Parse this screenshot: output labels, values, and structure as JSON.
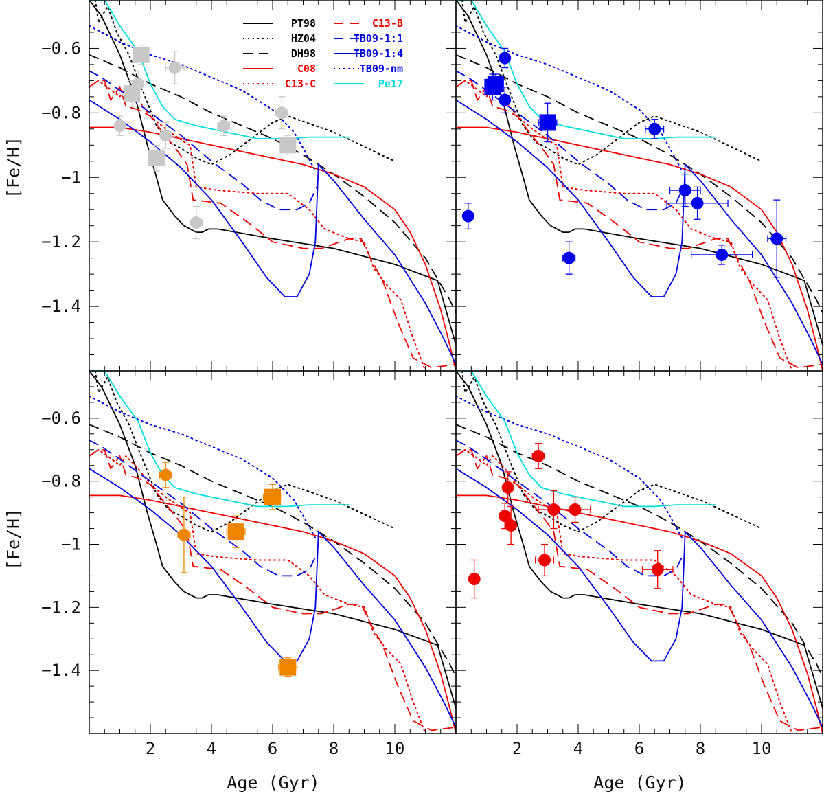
{
  "chart_data": {
    "type": "line",
    "title": "",
    "xlabel": "Age (Gyr)",
    "ylabel": "[Fe/H]",
    "xlim": [
      0,
      12
    ],
    "ylim": [
      -1.6,
      -0.45
    ],
    "xticks": [
      "2",
      "4",
      "6",
      "8",
      "10"
    ],
    "yticks": [
      "-0.6",
      "-0.8",
      "-1",
      "-1.2",
      "-1.4"
    ],
    "grid": false,
    "legend_position": "top",
    "legend": [
      {
        "name": "PT98",
        "color": "#000000",
        "style": "solid"
      },
      {
        "name": "HZ04",
        "color": "#000000",
        "style": "dotted"
      },
      {
        "name": "DH98",
        "color": "#000000",
        "style": "dashed"
      },
      {
        "name": "C08",
        "color": "#ee0000",
        "style": "solid"
      },
      {
        "name": "C13-C",
        "color": "#ee0000",
        "style": "dotted"
      },
      {
        "name": "C13-B",
        "color": "#ee0000",
        "style": "dashed"
      },
      {
        "name": "TB09-1:1",
        "color": "#0000dd",
        "style": "dashed"
      },
      {
        "name": "TB09-1:4",
        "color": "#0000dd",
        "style": "solid"
      },
      {
        "name": "TB09-nm",
        "color": "#0000dd",
        "style": "dotted"
      },
      {
        "name": "Pe17",
        "color": "#00dddd",
        "style": "solid"
      }
    ],
    "model_series": [
      {
        "name": "PT98",
        "color": "#000000",
        "style": "solid",
        "points": [
          [
            0,
            -0.45
          ],
          [
            0.4,
            -0.5
          ],
          [
            1.0,
            -0.62
          ],
          [
            1.5,
            -0.75
          ],
          [
            1.9,
            -0.9
          ],
          [
            2.2,
            -1.0
          ],
          [
            2.4,
            -1.07
          ],
          [
            2.8,
            -1.12
          ],
          [
            3.1,
            -1.15
          ],
          [
            3.5,
            -1.17
          ],
          [
            3.7,
            -1.17
          ],
          [
            3.9,
            -1.16
          ],
          [
            4.2,
            -1.16
          ],
          [
            6,
            -1.19
          ],
          [
            8,
            -1.22
          ],
          [
            10,
            -1.27
          ],
          [
            11.4,
            -1.32
          ],
          [
            11.7,
            -1.42
          ],
          [
            12,
            -1.52
          ]
        ]
      },
      {
        "name": "HZ04",
        "color": "#000000",
        "style": "dotted",
        "points": [
          [
            0.2,
            -0.45
          ],
          [
            0.3,
            -0.52
          ],
          [
            0.6,
            -0.47
          ],
          [
            0.9,
            -0.55
          ],
          [
            1.3,
            -0.62
          ],
          [
            1.7,
            -0.72
          ],
          [
            2.2,
            -0.84
          ],
          [
            2.6,
            -0.89
          ],
          [
            3.0,
            -0.91
          ],
          [
            3.5,
            -0.94
          ],
          [
            4.0,
            -0.96
          ],
          [
            4.6,
            -0.93
          ],
          [
            5.3,
            -0.88
          ],
          [
            6.0,
            -0.83
          ],
          [
            6.5,
            -0.81
          ],
          [
            8,
            -0.86
          ],
          [
            10,
            -0.95
          ]
        ]
      },
      {
        "name": "DH98",
        "color": "#000000",
        "style": "dashed",
        "points": [
          [
            0,
            -0.62
          ],
          [
            1,
            -0.66
          ],
          [
            2,
            -0.71
          ],
          [
            3,
            -0.75
          ],
          [
            4,
            -0.8
          ],
          [
            5,
            -0.84
          ],
          [
            6,
            -0.88
          ],
          [
            7,
            -0.93
          ],
          [
            8,
            -0.99
          ],
          [
            9,
            -1.06
          ],
          [
            10,
            -1.14
          ],
          [
            11,
            -1.25
          ],
          [
            11.8,
            -1.38
          ],
          [
            12,
            -1.42
          ]
        ]
      },
      {
        "name": "C08",
        "color": "#ee0000",
        "style": "solid",
        "points": [
          [
            0,
            -0.845
          ],
          [
            1,
            -0.845
          ],
          [
            2,
            -0.86
          ],
          [
            3,
            -0.88
          ],
          [
            4,
            -0.9
          ],
          [
            5,
            -0.92
          ],
          [
            6,
            -0.94
          ],
          [
            7,
            -0.96
          ],
          [
            8,
            -0.99
          ],
          [
            9,
            -1.03
          ],
          [
            10,
            -1.1
          ],
          [
            10.5,
            -1.17
          ],
          [
            11,
            -1.27
          ],
          [
            11.5,
            -1.41
          ],
          [
            11.8,
            -1.52
          ],
          [
            12,
            -1.6
          ]
        ]
      },
      {
        "name": "C13-C",
        "color": "#ee0000",
        "style": "dotted",
        "points": [
          [
            0,
            -0.72
          ],
          [
            0.3,
            -0.7
          ],
          [
            0.6,
            -0.72
          ],
          [
            1.0,
            -0.75
          ],
          [
            1.2,
            -0.72
          ],
          [
            1.6,
            -0.76
          ],
          [
            2.0,
            -0.81
          ],
          [
            2.5,
            -0.85
          ],
          [
            3.1,
            -0.89
          ],
          [
            3.3,
            -0.9
          ],
          [
            3.5,
            -1.03
          ],
          [
            4.2,
            -1.04
          ],
          [
            5.5,
            -1.05
          ],
          [
            6.5,
            -1.05
          ],
          [
            7.2,
            -1.1
          ],
          [
            7.7,
            -1.16
          ],
          [
            8.5,
            -1.19
          ],
          [
            9.0,
            -1.2
          ],
          [
            9.3,
            -1.28
          ],
          [
            9.7,
            -1.33
          ],
          [
            10.2,
            -1.38
          ],
          [
            10.6,
            -1.5
          ],
          [
            11,
            -1.6
          ]
        ]
      },
      {
        "name": "C13-B",
        "color": "#ee0000",
        "style": "dashed",
        "points": [
          [
            0,
            -0.72
          ],
          [
            0.3,
            -0.7
          ],
          [
            0.5,
            -0.7
          ],
          [
            0.7,
            -0.76
          ],
          [
            1.0,
            -0.72
          ],
          [
            1.2,
            -0.78
          ],
          [
            1.6,
            -0.79
          ],
          [
            2.0,
            -0.81
          ],
          [
            2.4,
            -0.86
          ],
          [
            2.9,
            -0.92
          ],
          [
            3.2,
            -0.96
          ],
          [
            3.4,
            -1.07
          ],
          [
            4.3,
            -1.08
          ],
          [
            5.2,
            -1.14
          ],
          [
            6.0,
            -1.2
          ],
          [
            7.0,
            -1.22
          ],
          [
            7.6,
            -1.22
          ],
          [
            8.5,
            -1.19
          ],
          [
            8.9,
            -1.19
          ],
          [
            9.2,
            -1.25
          ],
          [
            9.6,
            -1.32
          ],
          [
            10.1,
            -1.45
          ],
          [
            10.6,
            -1.56
          ],
          [
            11.2,
            -1.59
          ],
          [
            12,
            -1.58
          ]
        ]
      },
      {
        "name": "TB09-1:1",
        "color": "#0000dd",
        "style": "dashed",
        "points": [
          [
            0,
            -0.67
          ],
          [
            0.4,
            -0.69
          ],
          [
            1.0,
            -0.73
          ],
          [
            2,
            -0.8
          ],
          [
            3,
            -0.87
          ],
          [
            4,
            -0.95
          ],
          [
            5,
            -1.02
          ],
          [
            5.6,
            -1.07
          ],
          [
            6.2,
            -1.1
          ],
          [
            6.8,
            -1.1
          ],
          [
            7.2,
            -1.08
          ],
          [
            7.45,
            -1.03
          ]
        ]
      },
      {
        "name": "TB09-1:4",
        "color": "#0000dd",
        "style": "solid",
        "points": [
          [
            0,
            -0.76
          ],
          [
            1,
            -0.82
          ],
          [
            2,
            -0.89
          ],
          [
            3,
            -0.97
          ],
          [
            4,
            -1.07
          ],
          [
            5,
            -1.2
          ],
          [
            5.8,
            -1.31
          ],
          [
            6.4,
            -1.37
          ],
          [
            6.8,
            -1.37
          ],
          [
            7.2,
            -1.3
          ],
          [
            7.4,
            -1.2
          ],
          [
            7.5,
            -0.96
          ],
          [
            8,
            -1.01
          ],
          [
            9,
            -1.13
          ],
          [
            10,
            -1.24
          ],
          [
            11,
            -1.39
          ],
          [
            11.6,
            -1.5
          ],
          [
            12,
            -1.58
          ]
        ]
      },
      {
        "name": "TB09-nm",
        "color": "#0000dd",
        "style": "dotted",
        "points": [
          [
            0,
            -0.53
          ],
          [
            1,
            -0.58
          ],
          [
            2,
            -0.62
          ],
          [
            3,
            -0.65
          ],
          [
            4,
            -0.69
          ],
          [
            5,
            -0.73
          ],
          [
            6,
            -0.79
          ],
          [
            6.7,
            -0.86
          ],
          [
            7.0,
            -0.91
          ],
          [
            7.4,
            -0.98
          ]
        ]
      },
      {
        "name": "Pe17",
        "color": "#00dddd",
        "style": "solid",
        "points": [
          [
            0,
            -0.45
          ],
          [
            0.5,
            -0.45
          ],
          [
            1.0,
            -0.53
          ],
          [
            1.6,
            -0.61
          ],
          [
            2.0,
            -0.71
          ],
          [
            2.4,
            -0.78
          ],
          [
            2.8,
            -0.82
          ],
          [
            3.5,
            -0.84
          ],
          [
            4.5,
            -0.86
          ],
          [
            5.5,
            -0.88
          ],
          [
            6.5,
            -0.88
          ],
          [
            7.2,
            -0.875
          ],
          [
            8.5,
            -0.875
          ]
        ]
      }
    ],
    "panels": [
      {
        "name": "top-left",
        "color": "#c8c8c8",
        "circles": [
          [
            1.0,
            -0.84,
            0.1,
            0.03
          ],
          [
            1.6,
            -0.71,
            0.15,
            0.04
          ],
          [
            2.5,
            -0.87,
            0.15,
            0.04
          ],
          [
            2.8,
            -0.66,
            0.3,
            0.05
          ],
          [
            3.5,
            -1.14,
            0.2,
            0.05
          ],
          [
            4.4,
            -0.84,
            0.2,
            0.03
          ],
          [
            6.3,
            -0.8,
            0.2,
            0.05
          ]
        ],
        "squares": [
          [
            1.4,
            -0.74,
            0.15,
            0.04
          ],
          [
            1.7,
            -0.62,
            0.15,
            0.03
          ],
          [
            2.2,
            -0.94,
            0.2,
            0.04
          ],
          [
            6.5,
            -0.9,
            0.25,
            0.03
          ]
        ]
      },
      {
        "name": "top-right",
        "color": "#0000ee",
        "circles": [
          [
            0.4,
            -1.12,
            0.0,
            0.04
          ],
          [
            1.6,
            -0.63,
            0.15,
            0.03
          ],
          [
            1.6,
            -0.76,
            0.1,
            0.04
          ],
          [
            3.7,
            -1.25,
            0.2,
            0.05
          ],
          [
            6.5,
            -0.85,
            0.3,
            0.03
          ],
          [
            7.5,
            -1.04,
            0.5,
            0.05
          ],
          [
            7.9,
            -1.08,
            1.0,
            0.05
          ],
          [
            8.7,
            -1.24,
            1.0,
            0.03
          ],
          [
            10.5,
            -1.19,
            0.3,
            0.12
          ]
        ],
        "squares": [
          [
            1.2,
            -0.72,
            0.2,
            0.04
          ],
          [
            1.3,
            -0.71,
            0.15,
            0.03
          ],
          [
            3.0,
            -0.83,
            0.3,
            0.06
          ]
        ]
      },
      {
        "name": "bottom-left",
        "color": "#ee8500",
        "circles": [
          [
            2.5,
            -0.78,
            0.2,
            0.04
          ],
          [
            3.1,
            -0.97,
            0.2,
            0.12
          ]
        ],
        "squares": [
          [
            4.8,
            -0.96,
            0.3,
            0.05
          ],
          [
            6.0,
            -0.85,
            0.3,
            0.04
          ],
          [
            6.5,
            -1.39,
            0.3,
            0.03
          ]
        ]
      },
      {
        "name": "bottom-right",
        "color": "#ee0000",
        "circles": [
          [
            0.6,
            -1.11,
            0.1,
            0.06
          ],
          [
            1.6,
            -0.91,
            0.15,
            0.04
          ],
          [
            1.7,
            -0.82,
            0.15,
            0.05
          ],
          [
            1.8,
            -0.94,
            0.15,
            0.06
          ],
          [
            2.7,
            -0.72,
            0.2,
            0.04
          ],
          [
            2.9,
            -1.05,
            0.3,
            0.05
          ],
          [
            3.2,
            -0.89,
            0.5,
            0.06
          ],
          [
            3.9,
            -0.89,
            0.5,
            0.04
          ],
          [
            6.6,
            -1.08,
            0.5,
            0.06
          ]
        ],
        "squares": []
      }
    ]
  }
}
